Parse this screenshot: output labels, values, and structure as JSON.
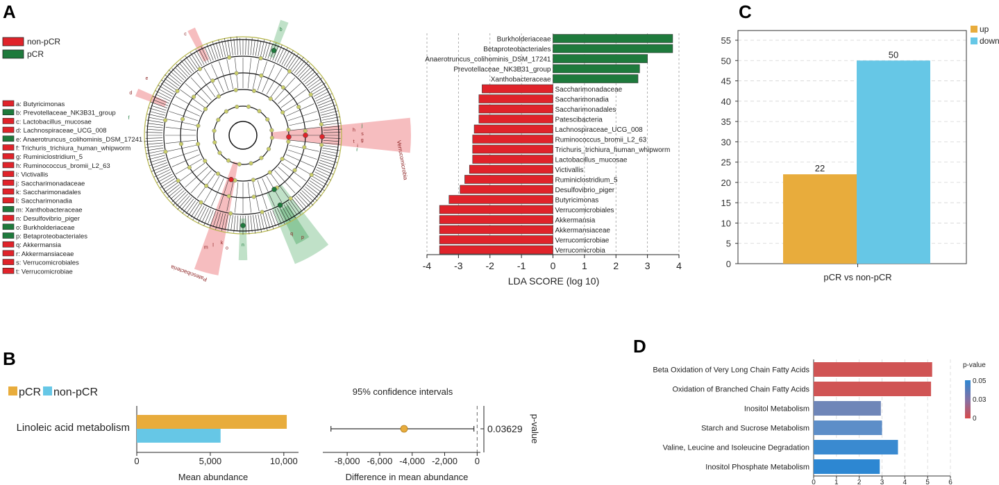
{
  "panels": {
    "a": "A",
    "b": "B",
    "c": "C",
    "d": "D"
  },
  "colors": {
    "red": "#e0232a",
    "green": "#1e7a3c",
    "orange": "#e8ac3c",
    "blue": "#66c7e6",
    "ink": "#222222"
  },
  "cladogram": {
    "legend": [
      {
        "label": "non-pCR",
        "color": "#e0232a"
      },
      {
        "label": "pCR",
        "color": "#1e7a3c"
      }
    ],
    "taxa": [
      {
        "label": "a: Butyricimonas",
        "group": "non-pCR"
      },
      {
        "label": "b: Prevotellaceae_NK3B31_group",
        "group": "pCR"
      },
      {
        "label": "c: Lactobacillus_mucosae",
        "group": "non-pCR"
      },
      {
        "label": "d: Lachnospiraceae_UCG_008",
        "group": "non-pCR"
      },
      {
        "label": "e: Anaerotruncus_colihominis_DSM_17241",
        "group": "pCR"
      },
      {
        "label": "f: Trichuris_trichiura_human_whipworm",
        "group": "non-pCR"
      },
      {
        "label": "g: Ruminiclostridium_5",
        "group": "non-pCR"
      },
      {
        "label": "h: Ruminococcus_bromii_L2_63",
        "group": "non-pCR"
      },
      {
        "label": "i: Victivallis",
        "group": "non-pCR"
      },
      {
        "label": "j: Saccharimonadaceae",
        "group": "non-pCR"
      },
      {
        "label": "k: Saccharimonadales",
        "group": "non-pCR"
      },
      {
        "label": "l: Saccharimonadia",
        "group": "non-pCR"
      },
      {
        "label": "m: Xanthobacteraceae",
        "group": "pCR"
      },
      {
        "label": "n: Desulfovibrio_piger",
        "group": "non-pCR"
      },
      {
        "label": "o: Burkholderiaceae",
        "group": "pCR"
      },
      {
        "label": "p: Betaproteobacteriales",
        "group": "pCR"
      },
      {
        "label": "q: Akkermansia",
        "group": "non-pCR"
      },
      {
        "label": "r: Akkermansiaceae",
        "group": "non-pCR"
      },
      {
        "label": "s: Verrucomicrobiales",
        "group": "non-pCR"
      },
      {
        "label": "t: Verrucomicrobiae",
        "group": "non-pCR"
      }
    ],
    "clade_labels": [
      "Verrucomicrobia",
      "Patescibacteria"
    ],
    "node_letters": [
      "b",
      "c",
      "d",
      "e",
      "f",
      "g",
      "h",
      "i",
      "j",
      "k",
      "l",
      "m",
      "n",
      "o",
      "p",
      "q",
      "r",
      "s",
      "t"
    ]
  },
  "chart_data": [
    {
      "id": "lda",
      "type": "bar",
      "orientation": "horizontal",
      "xlabel": "LDA SCORE (log 10)",
      "xlim": [
        -4,
        4
      ],
      "xticks": [
        -4,
        -3,
        -2,
        -1,
        0,
        1,
        2,
        3,
        4
      ],
      "categories": [
        "Burkholderiaceae",
        "Betaproteobacteriales",
        "Anaerotruncus_colihominis_DSM_17241",
        "Prevotellaceae_NK3B31_group",
        "Xanthobacteraceae",
        "Saccharimonadaceae",
        "Saccharimonadia",
        "Saccharimonadales",
        "Patescibacteria",
        "Lachnospiraceae_UCG_008",
        "Ruminococcus_bromii_L2_63",
        "Trichuris_trichiura_human_whipworm",
        "Lactobacillus_mucosae",
        "Victivallis",
        "Ruminiclostridium_5",
        "Desulfovibrio_piger",
        "Butyricimonas",
        "Verrucomicrobiales",
        "Akkermansia",
        "Akkermansiaceae",
        "Verrucomicrobiae",
        "Verrucomicrobia"
      ],
      "values": [
        3.8,
        3.8,
        3.0,
        2.75,
        2.7,
        -2.25,
        -2.35,
        -2.35,
        -2.35,
        -2.5,
        -2.55,
        -2.55,
        -2.55,
        -2.65,
        -2.8,
        -2.95,
        -3.3,
        -3.6,
        -3.6,
        -3.6,
        -3.6,
        -3.6
      ]
    },
    {
      "id": "updown",
      "type": "bar",
      "categories": [
        "pCR vs non-pCR"
      ],
      "series": [
        {
          "name": "up",
          "values": [
            22
          ],
          "color": "#e8ac3c"
        },
        {
          "name": "down",
          "values": [
            50
          ],
          "color": "#66c7e6"
        }
      ],
      "ylim": [
        0,
        55
      ],
      "yticks": [
        0,
        5,
        10,
        15,
        20,
        25,
        30,
        35,
        40,
        45,
        50,
        55
      ],
      "data_labels": [
        "22",
        "50"
      ],
      "grid": true,
      "legend": "top-right"
    },
    {
      "id": "abundance",
      "type": "bar",
      "orientation": "horizontal",
      "category": "Linoleic acid metabolism",
      "series": [
        {
          "name": "pCR",
          "value": 10200,
          "color": "#e8ac3c"
        },
        {
          "name": "non-pCR",
          "value": 5700,
          "color": "#66c7e6"
        }
      ],
      "xlabel": "Mean abundance",
      "xlim": [
        0,
        11000
      ],
      "xticks": [
        0,
        5000,
        10000
      ],
      "xtick_labels": [
        "0",
        "5,000",
        "10,000"
      ]
    },
    {
      "id": "ci",
      "type": "scatter",
      "title": "95% confidence intervals",
      "xlabel": "Difference in mean abundance",
      "estimate": -4500,
      "ci": [
        -9000,
        -200
      ],
      "xlim": [
        -9500,
        200
      ],
      "xticks": [
        -8000,
        -6000,
        -4000,
        -2000,
        0
      ],
      "xtick_labels": [
        "-8,000",
        "-6,000",
        "-4,000",
        "-2,000",
        "0"
      ],
      "p_value_label": "0.03629",
      "p_value_axis": "p-value"
    },
    {
      "id": "pathways",
      "type": "bar",
      "orientation": "horizontal",
      "categories": [
        "Beta Oxidation of Very Long Chain Fatty Acids",
        "Oxidation of Branched Chain Fatty Acids",
        "Inositol Metabolism",
        "Starch and Sucrose Metabolism",
        "Valine, Leucine and Isoleucine Degradation",
        "Inositol Phosphate Metabolism"
      ],
      "values": [
        5.2,
        5.15,
        2.95,
        3.0,
        3.7,
        2.9
      ],
      "bar_colors": [
        "#d05454",
        "#d05454",
        "#6f86b8",
        "#5d8ec8",
        "#3a8ad0",
        "#2d87d2"
      ],
      "xlim": [
        0,
        6
      ],
      "xticks": [
        0,
        1,
        2,
        3,
        4,
        5,
        6
      ],
      "colorbar": {
        "title": "p-value",
        "ticks": [
          "0.05",
          "0.03",
          "0"
        ]
      }
    }
  ]
}
